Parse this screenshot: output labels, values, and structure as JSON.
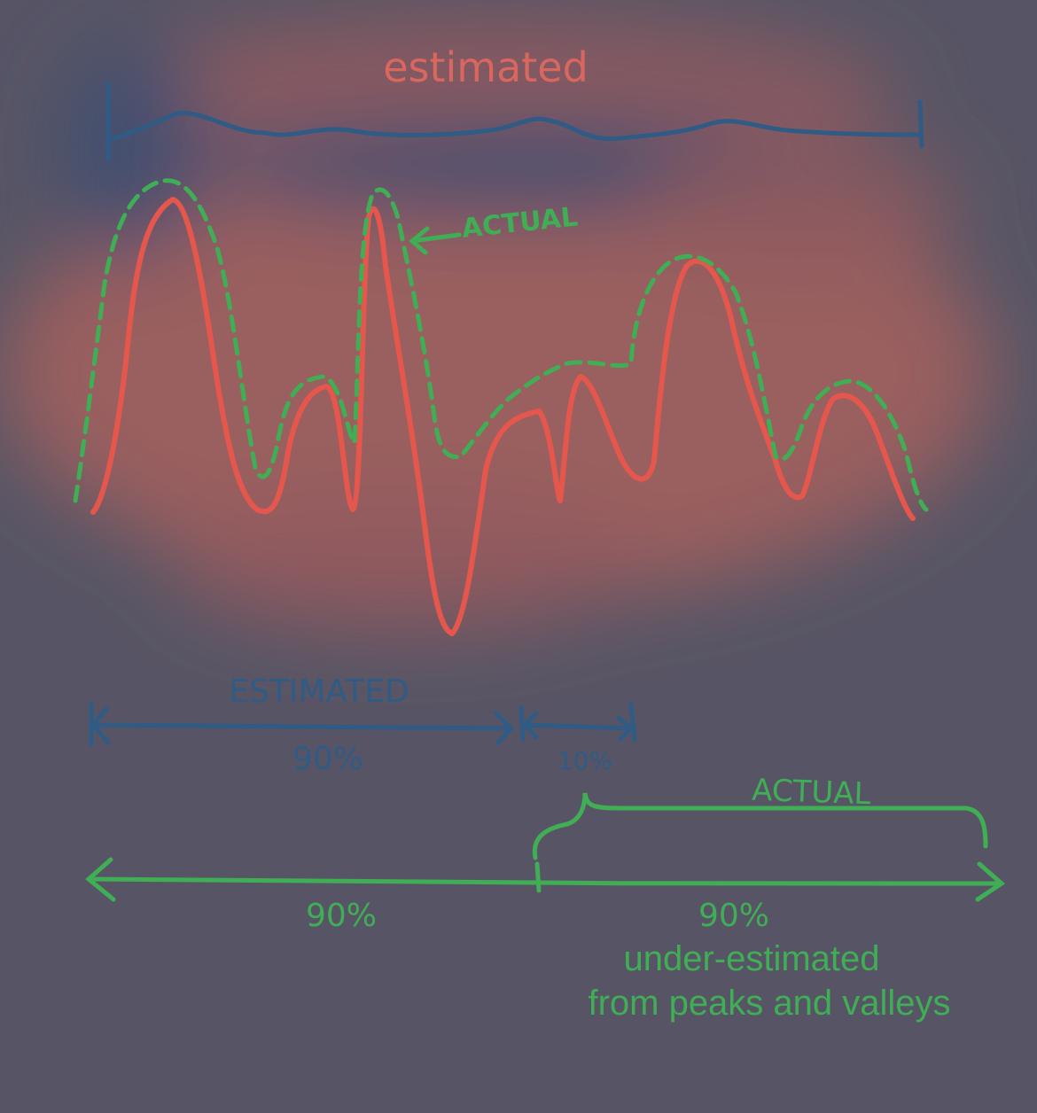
{
  "top_label": "estimated",
  "curve_label": "ACTUAL",
  "estimated_bar": {
    "label": "ESTIMATED",
    "left": "90%",
    "right": "10%"
  },
  "actual_bar": {
    "label": "ACTUAL",
    "left": "90%",
    "right": "90%"
  },
  "caption": [
    "under-estimated",
    "from peaks and valleys"
  ]
}
